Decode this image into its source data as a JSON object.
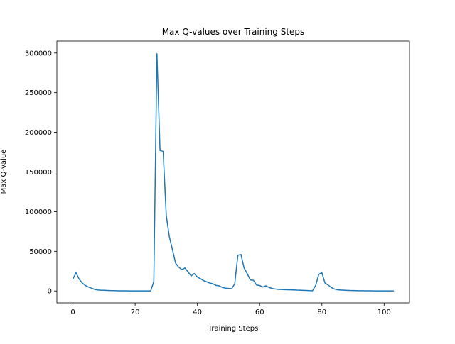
{
  "chart_data": {
    "type": "line",
    "title": "Max Q-values over Training Steps",
    "xlabel": "Training Steps",
    "ylabel": "Max Q-value",
    "xlim": [
      -5.15,
      108.15
    ],
    "ylim": [
      -15000,
      315000
    ],
    "xticks": [
      0,
      20,
      40,
      60,
      80,
      100
    ],
    "yticks": [
      0,
      50000,
      100000,
      150000,
      200000,
      250000,
      300000
    ],
    "xtick_labels": [
      "0",
      "20",
      "40",
      "60",
      "80",
      "100"
    ],
    "ytick_labels": [
      "0",
      "50000",
      "100000",
      "150000",
      "200000",
      "250000",
      "300000"
    ],
    "grid": false,
    "line_color": "#1f77b4",
    "x": [
      0,
      1,
      2,
      3,
      4,
      5,
      6,
      7,
      8,
      9,
      10,
      11,
      12,
      13,
      14,
      15,
      16,
      17,
      18,
      19,
      20,
      21,
      22,
      23,
      24,
      25,
      26,
      27,
      28,
      29,
      30,
      31,
      32,
      33,
      34,
      35,
      36,
      37,
      38,
      39,
      40,
      41,
      42,
      43,
      44,
      45,
      46,
      47,
      48,
      49,
      50,
      51,
      52,
      53,
      54,
      55,
      56,
      57,
      58,
      59,
      60,
      61,
      62,
      63,
      64,
      65,
      66,
      67,
      68,
      69,
      70,
      71,
      72,
      73,
      74,
      75,
      76,
      77,
      78,
      79,
      80,
      81,
      82,
      83,
      84,
      85,
      86,
      87,
      88,
      89,
      90,
      91,
      92,
      93,
      94,
      95,
      96,
      97,
      98,
      99,
      100,
      101,
      102,
      103
    ],
    "y": [
      15000,
      23000,
      15000,
      10000,
      7000,
      5000,
      3500,
      2000,
      1200,
      1000,
      900,
      700,
      500,
      400,
      300,
      250,
      200,
      150,
      120,
      100,
      90,
      80,
      70,
      60,
      50,
      40,
      12000,
      299000,
      177000,
      176000,
      95000,
      68000,
      52000,
      35000,
      30000,
      27000,
      29000,
      24000,
      19000,
      22000,
      17500,
      15500,
      13000,
      11500,
      10000,
      9000,
      7000,
      6500,
      4500,
      3500,
      3200,
      2800,
      9000,
      45000,
      46000,
      29000,
      22000,
      14000,
      13500,
      7500,
      7000,
      5000,
      6500,
      4500,
      3200,
      2500,
      2000,
      1900,
      1700,
      1500,
      1400,
      1300,
      1100,
      1000,
      800,
      600,
      400,
      300,
      7000,
      21000,
      23000,
      10000,
      7500,
      4500,
      2500,
      1500,
      1200,
      1000,
      800,
      600,
      500,
      400,
      350,
      300,
      250,
      200,
      150,
      120,
      100,
      90,
      80,
      70,
      60,
      50
    ]
  }
}
